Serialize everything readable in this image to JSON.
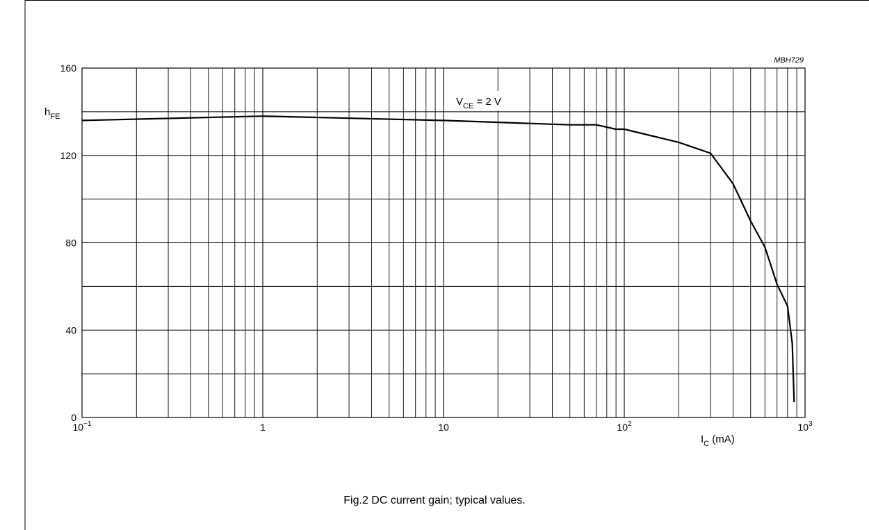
{
  "figure_code": "MBH729",
  "caption": "Fig.2  DC current gain; typical values.",
  "chart_data": {
    "type": "line",
    "x_scale": "log",
    "xlim": [
      0.1,
      1000
    ],
    "ylim": [
      0,
      160
    ],
    "grid": true,
    "ylabel": {
      "main": "h",
      "sub": "FE"
    },
    "xlabel": {
      "main": "I",
      "sub": "C",
      "unit": " (mA)"
    },
    "annotation": {
      "main": "V",
      "sub": "CE",
      "rest": " = 2 V"
    },
    "x_ticks": [
      {
        "value": 0.1,
        "base": "10",
        "exp": "−1"
      },
      {
        "value": 1,
        "base": "1",
        "exp": ""
      },
      {
        "value": 10,
        "base": "10",
        "exp": ""
      },
      {
        "value": 100,
        "base": "10",
        "exp": "2"
      },
      {
        "value": 1000,
        "base": "10",
        "exp": "3"
      }
    ],
    "y_ticks": [
      0,
      40,
      80,
      120,
      160
    ],
    "series": [
      {
        "x": [
          0.1,
          1,
          10,
          50,
          70,
          90,
          100,
          200,
          300,
          400,
          500,
          600,
          700,
          800,
          850,
          870
        ],
        "y": [
          136,
          138,
          136,
          134,
          134,
          132,
          132,
          126,
          121,
          107,
          90,
          78,
          61,
          51,
          34,
          7
        ]
      }
    ]
  }
}
